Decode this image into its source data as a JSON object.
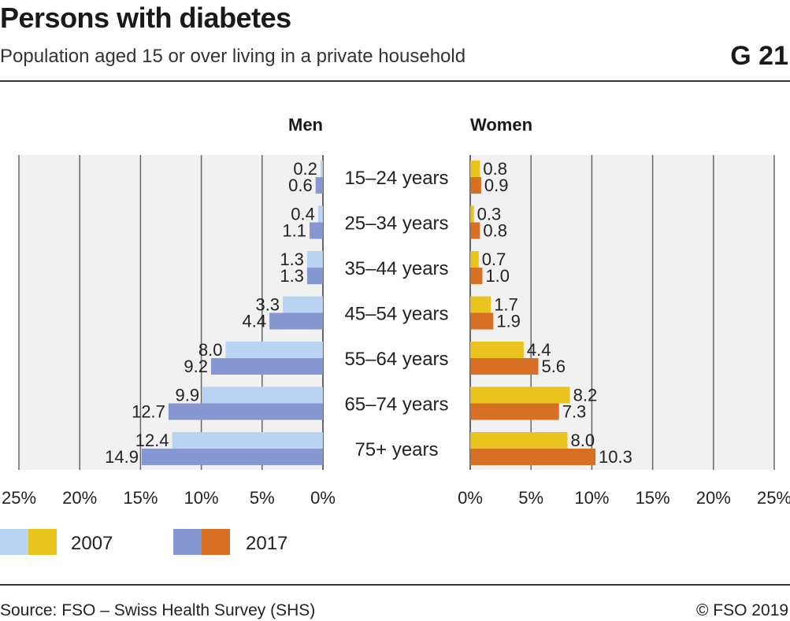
{
  "header": {
    "title": "Persons with diabetes",
    "subtitle": "Population aged 15 or over living in a private household",
    "graphic_id": "G 21"
  },
  "footer": {
    "source": "Source: FSO – Swiss Health Survey (SHS)",
    "copyright": "© FSO 2019"
  },
  "colors": {
    "men_2007": "#b8d4f2",
    "men_2017": "#8797d2",
    "women_2007": "#eac41e",
    "women_2017": "#d77024",
    "plot_bg": "#f1f1f1",
    "grid": "#666666"
  },
  "chart_data": {
    "type": "bar",
    "orientation": "horizontal-pyramid",
    "panels": [
      {
        "name": "Men",
        "direction": "left"
      },
      {
        "name": "Women",
        "direction": "right"
      }
    ],
    "categories": [
      "15–24 years",
      "25–34 years",
      "35–44 years",
      "45–54 years",
      "55–64 years",
      "65–74 years",
      "75+ years"
    ],
    "series": [
      {
        "name": "2007",
        "panel": "Men",
        "values": [
          0.2,
          0.4,
          1.3,
          3.3,
          8.0,
          9.9,
          12.4
        ]
      },
      {
        "name": "2017",
        "panel": "Men",
        "values": [
          0.6,
          1.1,
          1.3,
          4.4,
          9.2,
          12.7,
          14.9
        ]
      },
      {
        "name": "2007",
        "panel": "Women",
        "values": [
          0.8,
          0.3,
          0.7,
          1.7,
          4.4,
          8.2,
          8.0
        ]
      },
      {
        "name": "2017",
        "panel": "Women",
        "values": [
          0.9,
          0.8,
          1.0,
          1.9,
          5.6,
          7.3,
          10.3
        ]
      }
    ],
    "xlim": [
      0,
      25
    ],
    "x_ticks": [
      0,
      5,
      10,
      15,
      20,
      25
    ],
    "x_tick_labels": [
      "0%",
      "5%",
      "10%",
      "15%",
      "20%",
      "25%"
    ],
    "grid": true,
    "legend": {
      "placement": "bottom-left",
      "entries": [
        "2007",
        "2017"
      ]
    }
  }
}
